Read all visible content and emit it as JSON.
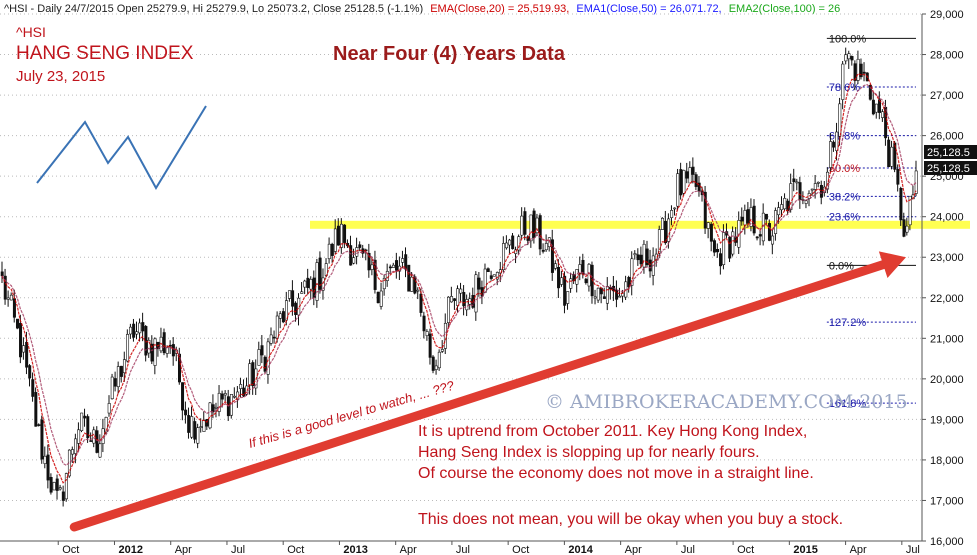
{
  "header": {
    "prefix": "^HSI - Daily 24/7/2015 Open 25279.9, Hi 25279.9, Lo 25073.2, Close 25128.5 (-1.1%)",
    "ema20": "EMA(Close,20) = 25,519.93,",
    "ema50": "EMA1(Close,50) = 26,071.72,",
    "ema100": "EMA2(Close,100) = 26"
  },
  "ticker": "^HSI",
  "index_name": "HANG SENG INDEX",
  "chart_date": "July 23, 2015",
  "headline": "Near Four (4) Years Data",
  "watermark": "© AMIBROKERACADEMY.COM 2015",
  "watch_note": "If this is a good level to watch, ... ???",
  "comment_lines": [
    "It is uptrend from October 2011. Key Hong Kong Index,",
    "Hang Seng Index is slopping up for nearly fours.",
    "Of course the economy does not move in a straight line."
  ],
  "comment_final": "This does not mean, you will be okay when you buy a stock.",
  "price_badges": [
    "25,128.5",
    "25,128.5"
  ],
  "colors": {
    "text_red": "#c0141c",
    "headline": "#9b1b1b",
    "ema20": "#cc0000",
    "ema50": "#1a1aff",
    "ema100": "#1aa81a",
    "trend_arrow": "#e03c31",
    "support_band": "#ffff33",
    "zigzag": "#3a73b5",
    "fib": "#1a1aaa",
    "watermark": "#9aa7c4"
  },
  "chart_data": {
    "type": "candlestick",
    "ylim": [
      16000,
      29000
    ],
    "yticks": [
      16000,
      17000,
      18000,
      19000,
      20000,
      21000,
      22000,
      23000,
      24000,
      25000,
      26000,
      27000,
      28000,
      29000
    ],
    "ytick_labels": [
      "16,000",
      "17,000",
      "18,000",
      "19,000",
      "20,000",
      "21,000",
      "22,000",
      "23,000",
      "24,000",
      "25,000",
      "26,000",
      "27,000",
      "28,000",
      "29,000"
    ],
    "xtick_labels": [
      "Oct",
      "2012",
      "Apr",
      "Jul",
      "Oct",
      "2013",
      "Apr",
      "Jul",
      "Oct",
      "2014",
      "Apr",
      "Jul",
      "Oct",
      "2015",
      "Apr",
      "Jul"
    ],
    "xtick_dates": [
      "2011-10",
      "2012-01",
      "2012-04",
      "2012-07",
      "2012-10",
      "2013-01",
      "2013-04",
      "2013-07",
      "2013-10",
      "2014-01",
      "2014-04",
      "2014-07",
      "2014-10",
      "2015-01",
      "2015-04",
      "2015-07"
    ],
    "bold_ticks": [
      "2012",
      "2013",
      "2014",
      "2015"
    ],
    "date_range": [
      "2011-07",
      "2015-07-24"
    ],
    "close_path": [
      [
        "2011-07",
        22400
      ],
      [
        "2011-08",
        20800
      ],
      [
        "2011-09",
        18500
      ],
      [
        "2011-10",
        16800
      ],
      [
        "2011-11",
        18900
      ],
      [
        "2011-12",
        18400
      ],
      [
        "2012-01",
        19800
      ],
      [
        "2012-02",
        21200
      ],
      [
        "2012-03",
        20800
      ],
      [
        "2012-04",
        20900
      ],
      [
        "2012-05",
        18900
      ],
      [
        "2012-06",
        19100
      ],
      [
        "2012-07",
        19500
      ],
      [
        "2012-08",
        19800
      ],
      [
        "2012-09",
        20600
      ],
      [
        "2012-10",
        21600
      ],
      [
        "2012-11",
        22000
      ],
      [
        "2012-12",
        22600
      ],
      [
        "2013-01",
        23600
      ],
      [
        "2013-02",
        23000
      ],
      [
        "2013-03",
        22300
      ],
      [
        "2013-04",
        22700
      ],
      [
        "2013-05",
        22400
      ],
      [
        "2013-06",
        20300
      ],
      [
        "2013-07",
        21900
      ],
      [
        "2013-08",
        22000
      ],
      [
        "2013-09",
        22800
      ],
      [
        "2013-10",
        23200
      ],
      [
        "2013-11",
        23800
      ],
      [
        "2013-12",
        23300
      ],
      [
        "2014-01",
        22000
      ],
      [
        "2014-02",
        22800
      ],
      [
        "2014-03",
        22100
      ],
      [
        "2014-04",
        22100
      ],
      [
        "2014-05",
        22900
      ],
      [
        "2014-06",
        23200
      ],
      [
        "2014-07",
        24700
      ],
      [
        "2014-08",
        24800
      ],
      [
        "2014-09",
        23000
      ],
      [
        "2014-10",
        23500
      ],
      [
        "2014-11",
        23900
      ],
      [
        "2014-12",
        23600
      ],
      [
        "2015-01",
        24500
      ],
      [
        "2015-02",
        24800
      ],
      [
        "2015-03",
        24900
      ],
      [
        "2015-04",
        28000
      ],
      [
        "2015-05",
        27400
      ],
      [
        "2015-06",
        26300
      ],
      [
        "2015-07-08",
        23500
      ],
      [
        "2015-07-24",
        25128.5
      ]
    ],
    "support_level": 23800,
    "trend_line": {
      "from": [
        "2011-10",
        16000
      ],
      "to": [
        "2015-07-24",
        23000
      ]
    },
    "fibonacci": [
      {
        "label": "100.0%",
        "value": 28400
      },
      {
        "label": "78.6%",
        "value": 27200
      },
      {
        "label": "61.8%",
        "value": 26000
      },
      {
        "label": "50.0%",
        "value": 25200
      },
      {
        "label": "38.2%",
        "value": 24500
      },
      {
        "label": "23.6%",
        "value": 24000
      },
      {
        "label": "0.0%",
        "value": 22800
      },
      {
        "label": "127.2%",
        "value": 21400
      },
      {
        "label": "161.8%",
        "value": 19400
      }
    ],
    "last_close": 25128.5,
    "ema20_last": 25519.93,
    "ema50_last": 26071.72
  }
}
